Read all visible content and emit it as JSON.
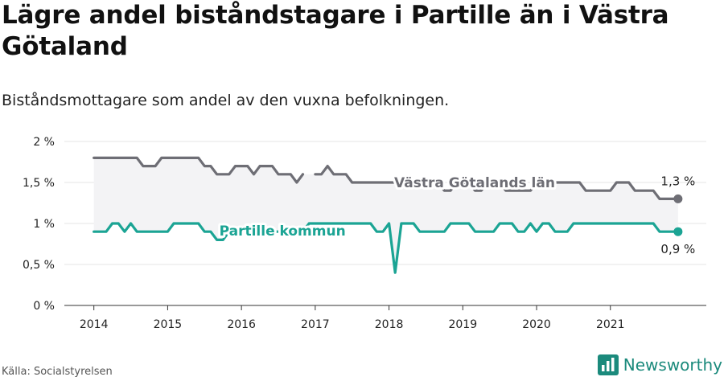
{
  "title": "Lägre andel biståndstagare i Partille än i Västra Götaland",
  "subtitle": "Biståndsmottagare som andel av den vuxna befolkningen.",
  "source": "Källa: Socialstyrelsen",
  "brand": {
    "name": "Newsworthy",
    "icon": "newsworthy-chart-icon",
    "color": "#1b8a7c"
  },
  "chart_data": {
    "type": "line",
    "ylim": [
      0,
      2
    ],
    "yticks": [
      0,
      0.5,
      1,
      1.5,
      2
    ],
    "ytick_labels": [
      "0 %",
      "0,5 %",
      "1 %",
      "1,5 %",
      "2 %"
    ],
    "xticks": [
      2014,
      2015,
      2016,
      2017,
      2018,
      2019,
      2020,
      2021
    ],
    "xtick_labels": [
      "2014",
      "2015",
      "2016",
      "2017",
      "2018",
      "2019",
      "2020",
      "2021"
    ],
    "xlim": [
      2013.6,
      2022.3
    ],
    "grid": true,
    "series": [
      {
        "name": "Västra Götalands län",
        "color": "#6e6e75",
        "end_label": "1,3 %",
        "x": [
          2014.0,
          2014.083,
          2014.167,
          2014.25,
          2014.333,
          2014.417,
          2014.5,
          2014.583,
          2014.667,
          2014.75,
          2014.833,
          2014.917,
          2015.0,
          2015.083,
          2015.167,
          2015.25,
          2015.333,
          2015.417,
          2015.5,
          2015.583,
          2015.667,
          2015.75,
          2015.833,
          2015.917,
          2016.0,
          2016.083,
          2016.167,
          2016.25,
          2016.333,
          2016.417,
          2016.5,
          2016.583,
          2016.667,
          2016.75,
          2016.833,
          null,
          2017.0,
          2017.083,
          2017.167,
          2017.25,
          2017.333,
          2017.417,
          2017.5,
          2017.583,
          2017.667,
          2017.75,
          2017.833,
          2017.917,
          2018.0,
          2018.083,
          2018.167,
          2018.25,
          2018.333,
          2018.417,
          2018.5,
          2018.583,
          2018.667,
          2018.75,
          2018.833,
          2018.917,
          2019.0,
          2019.083,
          2019.167,
          2019.25,
          2019.333,
          2019.417,
          2019.5,
          2019.583,
          2019.667,
          2019.75,
          2019.833,
          2019.917,
          2020.0,
          2020.083,
          2020.167,
          2020.25,
          2020.333,
          2020.417,
          2020.5,
          2020.583,
          2020.667,
          2020.75,
          2020.833,
          2020.917,
          2021.0,
          2021.083,
          2021.167,
          2021.25,
          2021.333,
          2021.417,
          2021.5,
          2021.583,
          2021.667,
          2021.75,
          2021.833,
          2021.917
        ],
        "y": [
          1.8,
          1.8,
          1.8,
          1.8,
          1.8,
          1.8,
          1.8,
          1.8,
          1.7,
          1.7,
          1.7,
          1.8,
          1.8,
          1.8,
          1.8,
          1.8,
          1.8,
          1.8,
          1.7,
          1.7,
          1.6,
          1.6,
          1.6,
          1.7,
          1.7,
          1.7,
          1.6,
          1.7,
          1.7,
          1.7,
          1.6,
          1.6,
          1.6,
          1.5,
          1.6,
          null,
          1.6,
          1.6,
          1.7,
          1.6,
          1.6,
          1.6,
          1.5,
          1.5,
          1.5,
          1.5,
          1.5,
          1.5,
          1.5,
          1.5,
          1.5,
          1.5,
          1.5,
          1.5,
          1.5,
          1.5,
          1.5,
          1.4,
          1.4,
          1.5,
          1.5,
          1.5,
          1.4,
          1.4,
          1.5,
          1.5,
          1.5,
          1.4,
          1.4,
          1.4,
          1.4,
          1.4,
          1.5,
          1.5,
          1.5,
          1.5,
          1.5,
          1.5,
          1.5,
          1.5,
          1.4,
          1.4,
          1.4,
          1.4,
          1.4,
          1.5,
          1.5,
          1.5,
          1.4,
          1.4,
          1.4,
          1.4,
          1.3,
          1.3,
          1.3,
          1.3
        ]
      },
      {
        "name": "Partille kommun",
        "color": "#1ba494",
        "end_label": "0,9 %",
        "x": [
          2014.0,
          2014.083,
          2014.167,
          2014.25,
          2014.333,
          2014.417,
          2014.5,
          2014.583,
          2014.667,
          2014.75,
          2014.833,
          2014.917,
          2015.0,
          2015.083,
          2015.167,
          2015.25,
          2015.333,
          2015.417,
          2015.5,
          2015.583,
          2015.667,
          2015.75,
          2015.833,
          2015.917,
          2016.0,
          2016.083,
          2016.167,
          2016.25,
          2016.333,
          2016.417,
          2016.5,
          2016.583,
          2016.667,
          2016.75,
          2016.833,
          2016.917,
          2017.0,
          2017.083,
          2017.167,
          2017.25,
          2017.333,
          2017.417,
          2017.5,
          2017.583,
          2017.667,
          2017.75,
          2017.833,
          2017.917,
          2018.0,
          2018.083,
          2018.167,
          2018.25,
          2018.333,
          2018.417,
          2018.5,
          2018.583,
          2018.667,
          2018.75,
          2018.833,
          2018.917,
          2019.0,
          2019.083,
          2019.167,
          2019.25,
          2019.333,
          2019.417,
          2019.5,
          2019.583,
          2019.667,
          2019.75,
          2019.833,
          2019.917,
          2020.0,
          2020.083,
          2020.167,
          2020.25,
          2020.333,
          2020.417,
          2020.5,
          2020.583,
          2020.667,
          2020.75,
          2020.833,
          2020.917,
          2021.0,
          2021.083,
          2021.167,
          2021.25,
          2021.333,
          2021.417,
          2021.5,
          2021.583,
          2021.667,
          2021.75,
          2021.833,
          2021.917
        ],
        "y": [
          0.9,
          0.9,
          0.9,
          1.0,
          1.0,
          0.9,
          1.0,
          0.9,
          0.9,
          0.9,
          0.9,
          0.9,
          0.9,
          1.0,
          1.0,
          1.0,
          1.0,
          1.0,
          0.9,
          0.9,
          0.8,
          0.8,
          0.9,
          0.9,
          0.9,
          0.9,
          0.9,
          0.9,
          0.9,
          0.9,
          0.9,
          0.9,
          0.9,
          0.9,
          0.9,
          1.0,
          1.0,
          1.0,
          1.0,
          1.0,
          1.0,
          1.0,
          1.0,
          1.0,
          1.0,
          1.0,
          0.9,
          0.9,
          1.0,
          0.4,
          1.0,
          1.0,
          1.0,
          0.9,
          0.9,
          0.9,
          0.9,
          0.9,
          1.0,
          1.0,
          1.0,
          1.0,
          0.9,
          0.9,
          0.9,
          0.9,
          1.0,
          1.0,
          1.0,
          0.9,
          0.9,
          1.0,
          0.9,
          1.0,
          1.0,
          0.9,
          0.9,
          0.9,
          1.0,
          1.0,
          1.0,
          1.0,
          1.0,
          1.0,
          1.0,
          1.0,
          1.0,
          1.0,
          1.0,
          1.0,
          1.0,
          1.0,
          0.9,
          0.9,
          0.9,
          0.9
        ]
      }
    ]
  }
}
